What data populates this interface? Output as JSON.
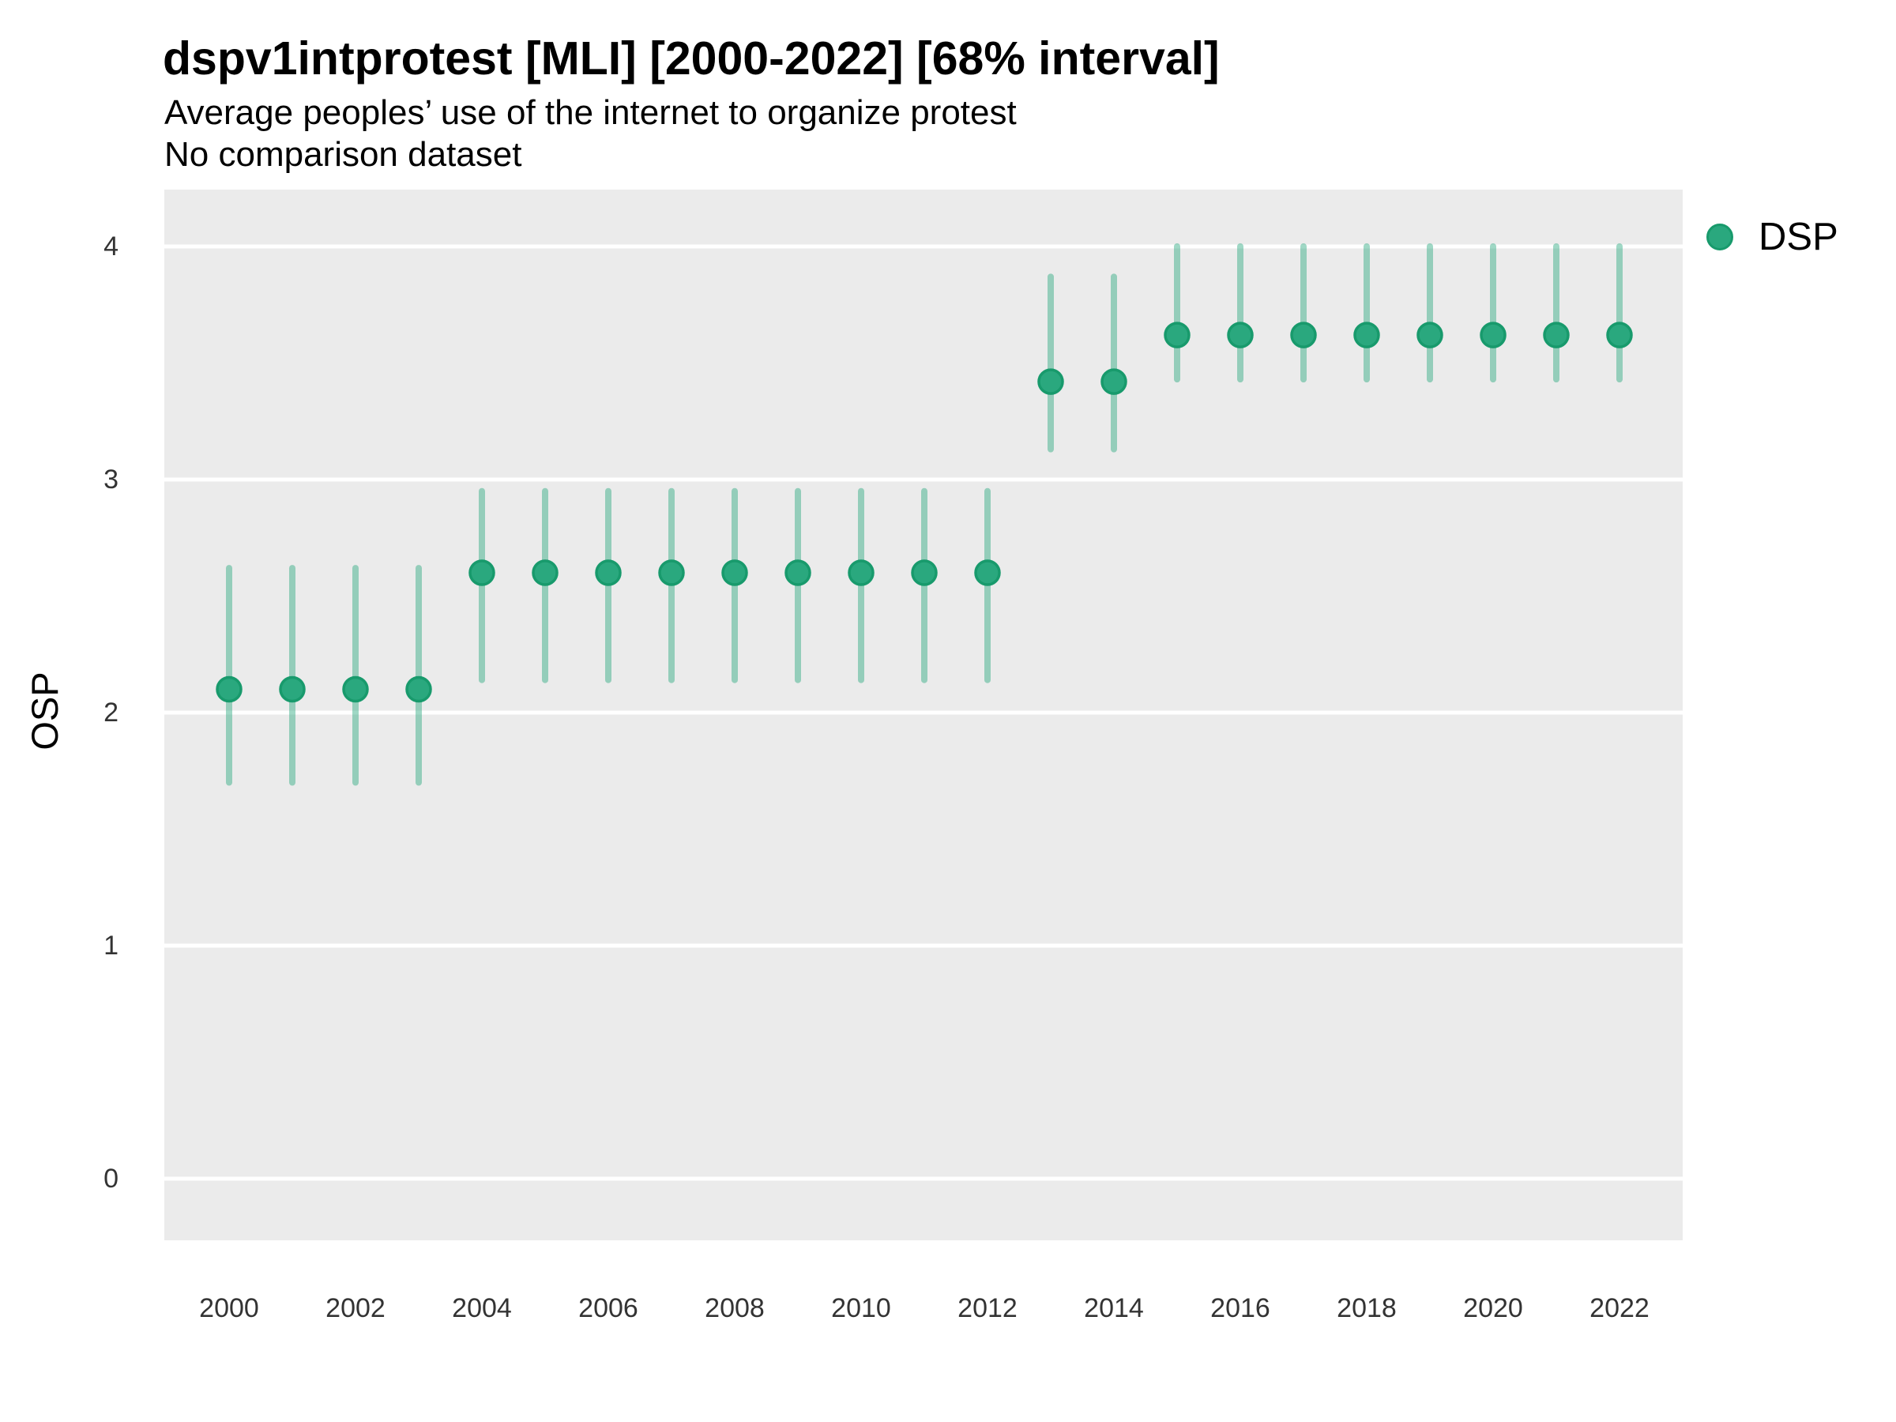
{
  "title": "dspv1intprotest [MLI] [2000-2022] [68% interval]",
  "subtitle": "Average peoples’ use of the internet to organize protest",
  "subtitle2": "No comparison dataset",
  "y_axis": {
    "label": "OSP",
    "ticks": [
      "0",
      "1",
      "2",
      "3",
      "4"
    ]
  },
  "x_axis": {
    "tick_labels": [
      "2000",
      "2002",
      "2004",
      "2006",
      "2008",
      "2010",
      "2012",
      "2014",
      "2016",
      "2018",
      "2020",
      "2022"
    ]
  },
  "legend": {
    "items": [
      {
        "label": "DSP",
        "color": "#2aa87e"
      }
    ],
    "position": "right"
  },
  "colors": {
    "point_fill": "#2aa87e",
    "point_stroke": "#189a6c",
    "interval_line": "rgba(42,168,126,0.45)",
    "panel_background": "#ebebeb",
    "gridline": "#ffffff",
    "tick_text": "#333333",
    "title_text": "#000000"
  },
  "chart_data": {
    "type": "scatter",
    "subtype": "pointrange",
    "interval": "68%",
    "title": "dspv1intprotest [MLI] [2000-2022] [68% interval]",
    "xlabel": "",
    "ylabel": "OSP",
    "ylim": [
      -0.26,
      4.26
    ],
    "xlim": [
      1999,
      2023
    ],
    "grid": "major-horizontal-only",
    "legend_position": "right",
    "series": [
      {
        "name": "DSP",
        "points": [
          {
            "year": 2000,
            "est": 2.1,
            "lo": 1.7,
            "hi": 2.62
          },
          {
            "year": 2001,
            "est": 2.1,
            "lo": 1.7,
            "hi": 2.62
          },
          {
            "year": 2002,
            "est": 2.1,
            "lo": 1.7,
            "hi": 2.62
          },
          {
            "year": 2003,
            "est": 2.1,
            "lo": 1.7,
            "hi": 2.62
          },
          {
            "year": 2004,
            "est": 2.6,
            "lo": 2.14,
            "hi": 2.95
          },
          {
            "year": 2005,
            "est": 2.6,
            "lo": 2.14,
            "hi": 2.95
          },
          {
            "year": 2006,
            "est": 2.6,
            "lo": 2.14,
            "hi": 2.95
          },
          {
            "year": 2007,
            "est": 2.6,
            "lo": 2.14,
            "hi": 2.95
          },
          {
            "year": 2008,
            "est": 2.6,
            "lo": 2.14,
            "hi": 2.95
          },
          {
            "year": 2009,
            "est": 2.6,
            "lo": 2.14,
            "hi": 2.95
          },
          {
            "year": 2010,
            "est": 2.6,
            "lo": 2.14,
            "hi": 2.95
          },
          {
            "year": 2011,
            "est": 2.6,
            "lo": 2.14,
            "hi": 2.95
          },
          {
            "year": 2012,
            "est": 2.6,
            "lo": 2.14,
            "hi": 2.95
          },
          {
            "year": 2013,
            "est": 3.42,
            "lo": 3.13,
            "hi": 3.87
          },
          {
            "year": 2014,
            "est": 3.42,
            "lo": 3.13,
            "hi": 3.87
          },
          {
            "year": 2015,
            "est": 3.62,
            "lo": 3.43,
            "hi": 4.0
          },
          {
            "year": 2016,
            "est": 3.62,
            "lo": 3.43,
            "hi": 4.0
          },
          {
            "year": 2017,
            "est": 3.62,
            "lo": 3.43,
            "hi": 4.0
          },
          {
            "year": 2018,
            "est": 3.62,
            "lo": 3.43,
            "hi": 4.0
          },
          {
            "year": 2019,
            "est": 3.62,
            "lo": 3.43,
            "hi": 4.0
          },
          {
            "year": 2020,
            "est": 3.62,
            "lo": 3.43,
            "hi": 4.0
          },
          {
            "year": 2021,
            "est": 3.62,
            "lo": 3.43,
            "hi": 4.0
          },
          {
            "year": 2022,
            "est": 3.62,
            "lo": 3.43,
            "hi": 4.0
          }
        ]
      }
    ]
  }
}
